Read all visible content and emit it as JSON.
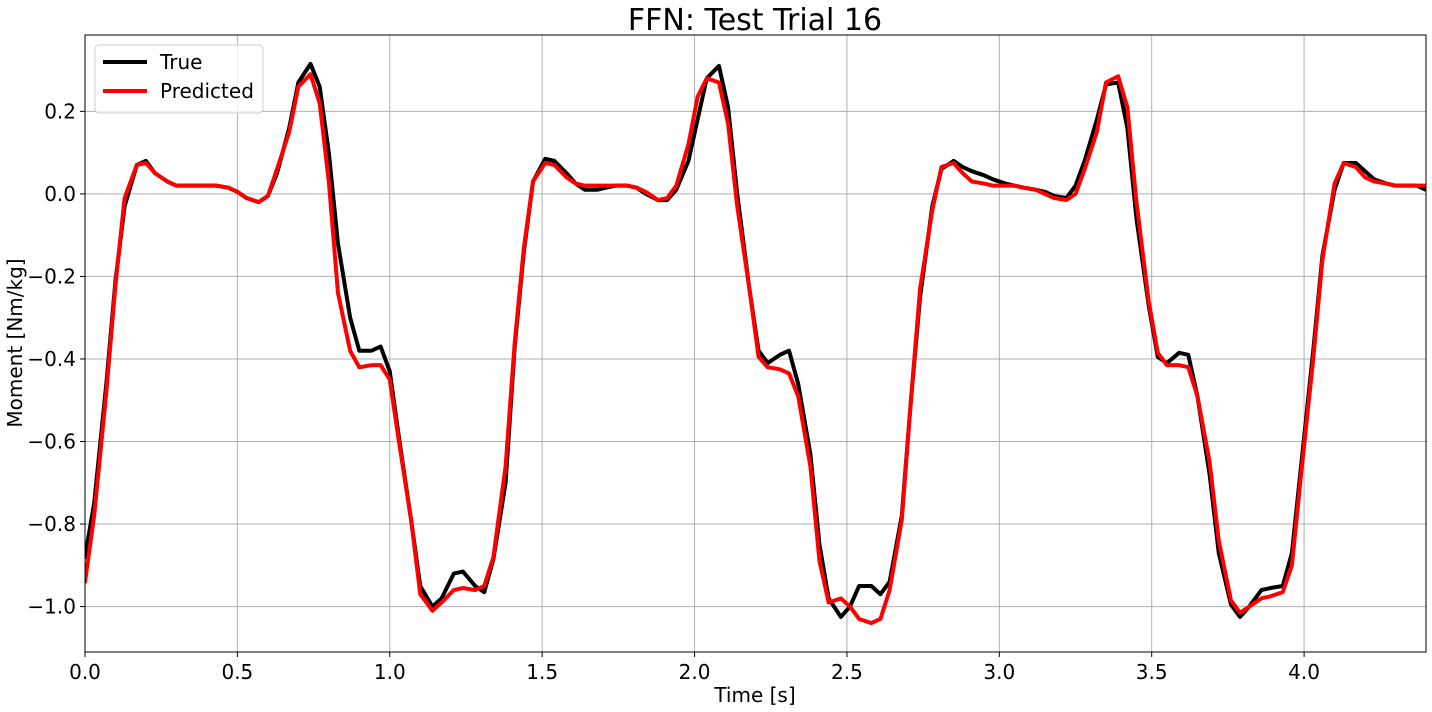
{
  "chart_data": {
    "type": "line",
    "title": "FFN: Test Trial 16",
    "xlabel": "Time [s]",
    "ylabel": "Moment [Nm/kg]",
    "xlim": [
      0,
      4.4
    ],
    "ylim": [
      -1.11,
      0.385
    ],
    "xticks": [
      0,
      0.5,
      1.0,
      1.5,
      2.0,
      2.5,
      3.0,
      3.5,
      4.0
    ],
    "xtick_labels": [
      "0.0",
      "0.5",
      "1.0",
      "1.5",
      "2.0",
      "2.5",
      "3.0",
      "3.5",
      "4.0"
    ],
    "yticks": [
      -1.0,
      -0.8,
      -0.6,
      -0.4,
      -0.2,
      0.0,
      0.2
    ],
    "ytick_labels": [
      "−1.0",
      "−0.8",
      "−0.6",
      "−0.4",
      "−0.2",
      "0.0",
      "0.2"
    ],
    "grid": true,
    "legend_position": "top-left",
    "series": [
      {
        "name": "True",
        "color": "#000000",
        "x": [
          0,
          0.03,
          0.07,
          0.1,
          0.13,
          0.17,
          0.2,
          0.23,
          0.27,
          0.3,
          0.33,
          0.37,
          0.4,
          0.43,
          0.47,
          0.5,
          0.53,
          0.57,
          0.6,
          0.63,
          0.67,
          0.7,
          0.74,
          0.77,
          0.8,
          0.83,
          0.87,
          0.9,
          0.94,
          0.97,
          1.0,
          1.03,
          1.07,
          1.1,
          1.14,
          1.17,
          1.21,
          1.24,
          1.28,
          1.31,
          1.34,
          1.38,
          1.41,
          1.44,
          1.47,
          1.51,
          1.54,
          1.58,
          1.61,
          1.64,
          1.68,
          1.71,
          1.74,
          1.78,
          1.81,
          1.84,
          1.88,
          1.91,
          1.94,
          1.98,
          2.01,
          2.04,
          2.08,
          2.11,
          2.14,
          2.18,
          2.21,
          2.24,
          2.28,
          2.31,
          2.34,
          2.38,
          2.41,
          2.44,
          2.48,
          2.51,
          2.54,
          2.58,
          2.61,
          2.64,
          2.68,
          2.71,
          2.74,
          2.78,
          2.81,
          2.85,
          2.88,
          2.91,
          2.95,
          2.98,
          3.02,
          3.05,
          3.08,
          3.12,
          3.15,
          3.18,
          3.22,
          3.25,
          3.28,
          3.32,
          3.35,
          3.39,
          3.42,
          3.45,
          3.49,
          3.52,
          3.55,
          3.59,
          3.62,
          3.65,
          3.69,
          3.72,
          3.76,
          3.79,
          3.82,
          3.86,
          3.89,
          3.93,
          3.96,
          3.99,
          4.03,
          4.06,
          4.1,
          4.13,
          4.17,
          4.2,
          4.23,
          4.27,
          4.3,
          4.33,
          4.37,
          4.4
        ],
        "values": [
          -0.88,
          -0.75,
          -0.46,
          -0.21,
          -0.03,
          0.07,
          0.08,
          0.05,
          0.03,
          0.02,
          0.02,
          0.02,
          0.02,
          0.02,
          0.015,
          0.005,
          -0.01,
          -0.02,
          -0.005,
          0.05,
          0.16,
          0.27,
          0.315,
          0.26,
          0.1,
          -0.12,
          -0.3,
          -0.38,
          -0.38,
          -0.37,
          -0.43,
          -0.59,
          -0.79,
          -0.95,
          -1.0,
          -0.98,
          -0.92,
          -0.915,
          -0.95,
          -0.965,
          -0.885,
          -0.7,
          -0.37,
          -0.14,
          0.03,
          0.085,
          0.08,
          0.05,
          0.025,
          0.01,
          0.01,
          0.015,
          0.02,
          0.02,
          0.015,
          0.0,
          -0.015,
          -0.015,
          0.01,
          0.08,
          0.18,
          0.28,
          0.31,
          0.21,
          0.0,
          -0.23,
          -0.38,
          -0.41,
          -0.39,
          -0.38,
          -0.46,
          -0.63,
          -0.85,
          -0.98,
          -1.025,
          -1.0,
          -0.95,
          -0.95,
          -0.97,
          -0.94,
          -0.78,
          -0.5,
          -0.25,
          -0.03,
          0.06,
          0.08,
          0.065,
          0.055,
          0.045,
          0.035,
          0.025,
          0.02,
          0.015,
          0.01,
          0.005,
          -0.005,
          -0.01,
          0.02,
          0.08,
          0.18,
          0.265,
          0.27,
          0.16,
          -0.06,
          -0.27,
          -0.395,
          -0.41,
          -0.385,
          -0.39,
          -0.49,
          -0.68,
          -0.87,
          -0.995,
          -1.025,
          -1.0,
          -0.96,
          -0.955,
          -0.95,
          -0.87,
          -0.66,
          -0.38,
          -0.15,
          0.01,
          0.075,
          0.075,
          0.055,
          0.035,
          0.025,
          0.02,
          0.02,
          0.02,
          0.01
        ]
      },
      {
        "name": "Predicted",
        "color": "#ff0000",
        "x": [
          0,
          0.03,
          0.07,
          0.1,
          0.13,
          0.17,
          0.2,
          0.23,
          0.27,
          0.3,
          0.33,
          0.37,
          0.4,
          0.43,
          0.47,
          0.5,
          0.53,
          0.57,
          0.6,
          0.63,
          0.67,
          0.7,
          0.74,
          0.77,
          0.8,
          0.83,
          0.87,
          0.9,
          0.94,
          0.97,
          1.0,
          1.03,
          1.07,
          1.1,
          1.14,
          1.17,
          1.21,
          1.24,
          1.28,
          1.31,
          1.34,
          1.38,
          1.41,
          1.44,
          1.47,
          1.51,
          1.54,
          1.58,
          1.61,
          1.64,
          1.68,
          1.71,
          1.74,
          1.78,
          1.81,
          1.84,
          1.88,
          1.91,
          1.94,
          1.98,
          2.01,
          2.04,
          2.08,
          2.11,
          2.14,
          2.18,
          2.21,
          2.24,
          2.28,
          2.31,
          2.34,
          2.38,
          2.41,
          2.44,
          2.48,
          2.51,
          2.54,
          2.58,
          2.61,
          2.64,
          2.68,
          2.71,
          2.74,
          2.78,
          2.81,
          2.85,
          2.88,
          2.91,
          2.95,
          2.98,
          3.02,
          3.05,
          3.08,
          3.12,
          3.15,
          3.18,
          3.22,
          3.25,
          3.28,
          3.32,
          3.35,
          3.39,
          3.42,
          3.45,
          3.49,
          3.52,
          3.55,
          3.59,
          3.62,
          3.65,
          3.69,
          3.72,
          3.76,
          3.79,
          3.82,
          3.86,
          3.89,
          3.93,
          3.96,
          3.99,
          4.03,
          4.06,
          4.1,
          4.13,
          4.17,
          4.2,
          4.23,
          4.27,
          4.3,
          4.33,
          4.37,
          4.4
        ],
        "values": [
          -0.94,
          -0.78,
          -0.48,
          -0.22,
          -0.01,
          0.07,
          0.075,
          0.05,
          0.03,
          0.02,
          0.02,
          0.02,
          0.02,
          0.02,
          0.015,
          0.005,
          -0.01,
          -0.02,
          -0.005,
          0.06,
          0.15,
          0.26,
          0.29,
          0.22,
          0.03,
          -0.24,
          -0.38,
          -0.42,
          -0.415,
          -0.415,
          -0.45,
          -0.6,
          -0.79,
          -0.97,
          -1.01,
          -0.99,
          -0.96,
          -0.955,
          -0.96,
          -0.95,
          -0.88,
          -0.66,
          -0.36,
          -0.13,
          0.03,
          0.075,
          0.07,
          0.04,
          0.025,
          0.02,
          0.02,
          0.02,
          0.02,
          0.02,
          0.015,
          0.005,
          -0.015,
          -0.01,
          0.02,
          0.12,
          0.235,
          0.28,
          0.27,
          0.17,
          -0.03,
          -0.23,
          -0.395,
          -0.42,
          -0.425,
          -0.435,
          -0.49,
          -0.66,
          -0.89,
          -0.99,
          -0.98,
          -1.0,
          -1.03,
          -1.04,
          -1.03,
          -0.96,
          -0.79,
          -0.5,
          -0.23,
          -0.04,
          0.065,
          0.075,
          0.05,
          0.03,
          0.025,
          0.02,
          0.02,
          0.02,
          0.015,
          0.01,
          0.0,
          -0.01,
          -0.015,
          0.0,
          0.06,
          0.15,
          0.27,
          0.285,
          0.21,
          -0.02,
          -0.26,
          -0.385,
          -0.415,
          -0.415,
          -0.42,
          -0.49,
          -0.65,
          -0.84,
          -0.985,
          -1.015,
          -1.0,
          -0.98,
          -0.975,
          -0.965,
          -0.9,
          -0.68,
          -0.4,
          -0.16,
          0.025,
          0.075,
          0.065,
          0.04,
          0.03,
          0.025,
          0.02,
          0.02,
          0.02,
          0.02
        ]
      }
    ]
  }
}
